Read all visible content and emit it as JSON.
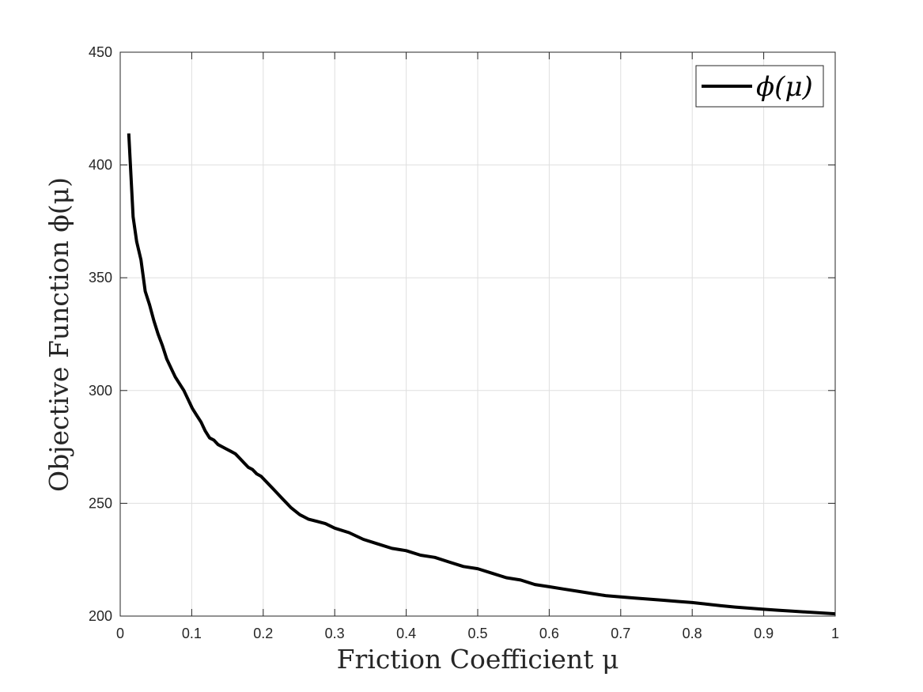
{
  "chart_data": {
    "type": "line",
    "xlabel": "Friction Coefficient μ",
    "ylabel": "Objective Function ϕ(μ)",
    "xlim": [
      0,
      1
    ],
    "ylim": [
      200,
      450
    ],
    "xticks": [
      "0",
      "0.1",
      "0.2",
      "0.3",
      "0.4",
      "0.5",
      "0.6",
      "0.7",
      "0.8",
      "0.9",
      "1"
    ],
    "yticks": [
      "200",
      "250",
      "300",
      "350",
      "400",
      "450"
    ],
    "grid": true,
    "legend_position": "top-right",
    "line_color": "#000000",
    "series": [
      {
        "name": "ϕ(μ)",
        "x": [
          0.012,
          0.018,
          0.023,
          0.029,
          0.035,
          0.041,
          0.047,
          0.053,
          0.059,
          0.065,
          0.071,
          0.077,
          0.083,
          0.089,
          0.095,
          0.101,
          0.107,
          0.113,
          0.119,
          0.125,
          0.131,
          0.137,
          0.143,
          0.149,
          0.155,
          0.161,
          0.167,
          0.173,
          0.179,
          0.185,
          0.191,
          0.197,
          0.203,
          0.215,
          0.227,
          0.239,
          0.251,
          0.263,
          0.275,
          0.287,
          0.3,
          0.32,
          0.34,
          0.36,
          0.38,
          0.4,
          0.42,
          0.44,
          0.46,
          0.48,
          0.5,
          0.52,
          0.54,
          0.56,
          0.58,
          0.6,
          0.62,
          0.64,
          0.66,
          0.68,
          0.7,
          0.72,
          0.74,
          0.76,
          0.78,
          0.8,
          0.82,
          0.84,
          0.86,
          0.88,
          0.9,
          0.92,
          0.94,
          0.96,
          0.98,
          1.0
        ],
        "values": [
          414,
          377,
          366,
          358,
          344,
          338,
          331,
          325,
          320,
          314,
          310,
          306,
          303,
          300,
          296,
          292,
          289,
          286,
          282,
          279,
          278,
          276,
          275,
          274,
          273,
          272,
          270,
          268,
          266,
          265,
          263,
          262,
          260,
          256,
          252,
          248,
          245,
          243,
          242,
          241,
          239,
          237,
          234,
          232,
          230,
          229,
          227,
          226,
          224,
          222,
          221,
          219,
          217,
          216,
          214,
          213,
          212,
          211,
          210,
          209,
          208.5,
          208,
          207.5,
          207,
          206.5,
          206,
          205.3,
          204.6,
          204,
          203.5,
          203,
          202.6,
          202.2,
          201.8,
          201.4,
          201
        ]
      }
    ]
  }
}
